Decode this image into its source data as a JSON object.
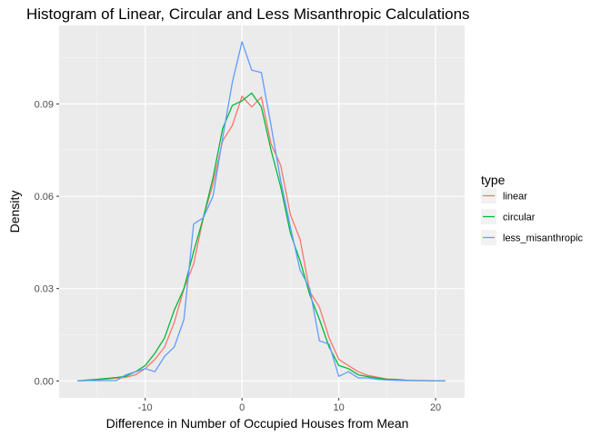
{
  "chart_data": {
    "type": "line",
    "title": "Histogram of Linear, Circular and Less Misanthropic Calculations",
    "xlabel": "Difference in Number of Occupied Houses from Mean",
    "ylabel": "Density",
    "xlim": [
      -18.9,
      23
    ],
    "ylim": [
      -0.0055,
      0.1155
    ],
    "x_ticks": [
      -10,
      0,
      10,
      20
    ],
    "x_tick_labels": [
      "-10",
      "0",
      "10",
      "20"
    ],
    "y_ticks": [
      0.0,
      0.03,
      0.06,
      0.09
    ],
    "y_tick_labels": [
      "0.00",
      "0.03",
      "0.06",
      "0.09"
    ],
    "grid": true,
    "legend_title": "type",
    "legend_position": "right",
    "series": [
      {
        "name": "linear",
        "color": "#F8766D",
        "x": [
          -17,
          -16,
          -15,
          -14,
          -13,
          -12,
          -11,
          -10,
          -9,
          -8,
          -7,
          -6,
          -5,
          -4,
          -3,
          -2,
          -1,
          0,
          1,
          2,
          3,
          4,
          5,
          6,
          7,
          8,
          9,
          10,
          11,
          12,
          13,
          14,
          15,
          16,
          17,
          18,
          19,
          20,
          21
        ],
        "y": [
          0.0,
          0.0002,
          0.0004,
          0.0006,
          0.0009,
          0.0012,
          0.002,
          0.004,
          0.007,
          0.011,
          0.019,
          0.03,
          0.038,
          0.053,
          0.064,
          0.078,
          0.083,
          0.0925,
          0.089,
          0.0922,
          0.077,
          0.07,
          0.054,
          0.046,
          0.029,
          0.024,
          0.014,
          0.007,
          0.005,
          0.003,
          0.0018,
          0.0012,
          0.0006,
          0.0005,
          0.0002,
          0.0001,
          0.0001,
          0.0,
          0.0
        ]
      },
      {
        "name": "circular",
        "color": "#00BA38",
        "x": [
          -17,
          -16,
          -15,
          -14,
          -13,
          -12,
          -11,
          -10,
          -9,
          -8,
          -7,
          -6,
          -5,
          -4,
          -3,
          -2,
          -1,
          0,
          1,
          2,
          3,
          4,
          5,
          6,
          7,
          8,
          9,
          10,
          11,
          12,
          13,
          14,
          15,
          16,
          17,
          18,
          19,
          20,
          21
        ],
        "y": [
          0.0,
          0.0003,
          0.0005,
          0.0008,
          0.0011,
          0.0015,
          0.003,
          0.005,
          0.009,
          0.014,
          0.023,
          0.03,
          0.042,
          0.053,
          0.066,
          0.082,
          0.0895,
          0.091,
          0.0935,
          0.089,
          0.075,
          0.063,
          0.048,
          0.039,
          0.028,
          0.02,
          0.011,
          0.005,
          0.004,
          0.002,
          0.0014,
          0.0009,
          0.0005,
          0.0004,
          0.0002,
          0.0001,
          0.0001,
          0.0,
          0.0
        ]
      },
      {
        "name": "less_misanthropic",
        "color": "#619CFF",
        "x": [
          -17,
          -16,
          -15,
          -14,
          -13,
          -12,
          -11,
          -10,
          -9,
          -8,
          -7,
          -6,
          -5,
          -4,
          -3,
          -2,
          -1,
          0,
          1,
          2,
          3,
          4,
          5,
          6,
          7,
          8,
          9,
          10,
          11,
          12,
          13,
          14,
          15,
          16,
          17,
          18,
          19,
          20,
          21
        ],
        "y": [
          0.0,
          0.0001,
          0.0001,
          0.0001,
          0.0001,
          0.002,
          0.003,
          0.004,
          0.003,
          0.008,
          0.011,
          0.02,
          0.051,
          0.053,
          0.06,
          0.079,
          0.097,
          0.1102,
          0.101,
          0.1002,
          0.083,
          0.065,
          0.05,
          0.036,
          0.03,
          0.013,
          0.012,
          0.0015,
          0.003,
          0.001,
          0.001,
          0.0005,
          0.0003,
          0.0002,
          0.0001,
          0.0001,
          0.0001,
          0.0,
          0.0
        ]
      }
    ]
  }
}
